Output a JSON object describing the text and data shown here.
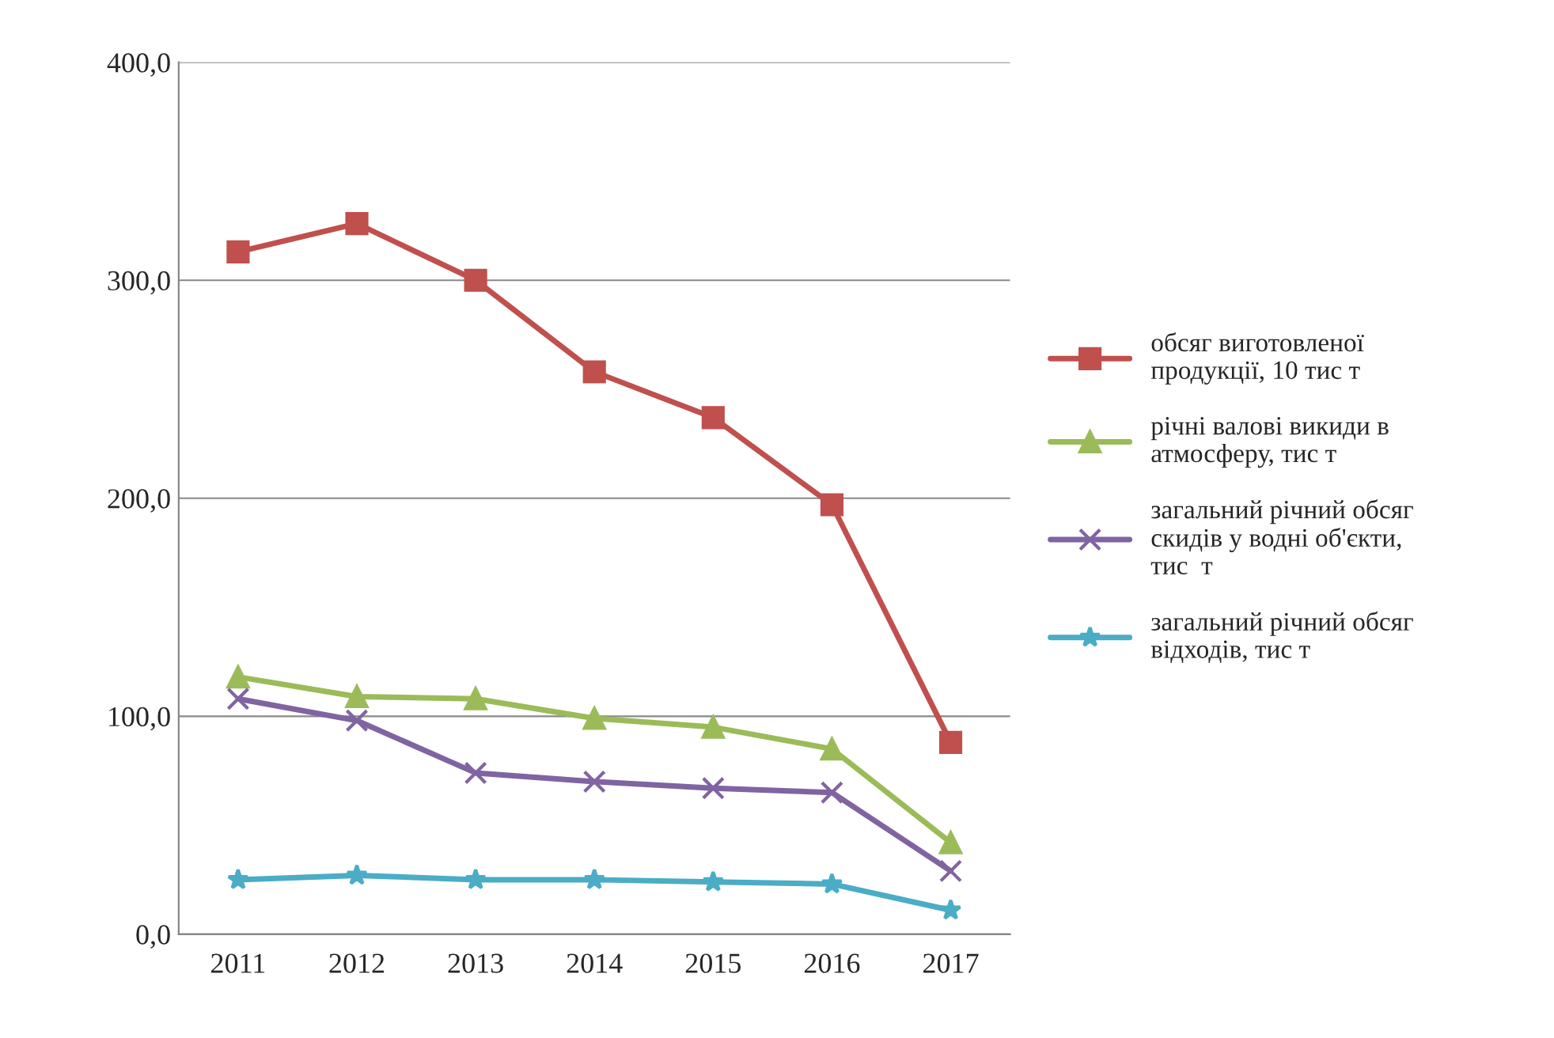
{
  "chart_data": {
    "type": "line",
    "categories": [
      "2011",
      "2012",
      "2013",
      "2014",
      "2015",
      "2016",
      "2017"
    ],
    "series": [
      {
        "name": "обсяг виготовленої\nпродукції, 10 тис т",
        "color": "#c0504d",
        "marker": "square",
        "values": [
          313,
          326,
          300,
          258,
          237,
          197,
          88
        ]
      },
      {
        "name": "річні валові викиди в\nатмосферу, тис т",
        "color": "#9bbb59",
        "marker": "triangle",
        "values": [
          118,
          109,
          108,
          99,
          95,
          85,
          42
        ]
      },
      {
        "name": "загальний річний обсяг\nскидів у водні об'єкти,\nтис  т",
        "color": "#8064a2",
        "marker": "cross",
        "values": [
          108,
          98,
          74,
          70,
          67,
          65,
          29
        ]
      },
      {
        "name": "загальний річний обсяг\nвідходів, тис т",
        "color": "#4bacc6",
        "marker": "star",
        "values": [
          25,
          27,
          25,
          25,
          24,
          23,
          11
        ]
      }
    ],
    "ylim": [
      0,
      400
    ],
    "yticks": [
      {
        "value": 0,
        "label": "0,0"
      },
      {
        "value": 100,
        "label": "100,0"
      },
      {
        "value": 200,
        "label": "200,0"
      },
      {
        "value": 300,
        "label": "300,0"
      },
      {
        "value": 400,
        "label": "400,0"
      }
    ],
    "grid": "y",
    "legend": "right",
    "line_style": "solid"
  }
}
